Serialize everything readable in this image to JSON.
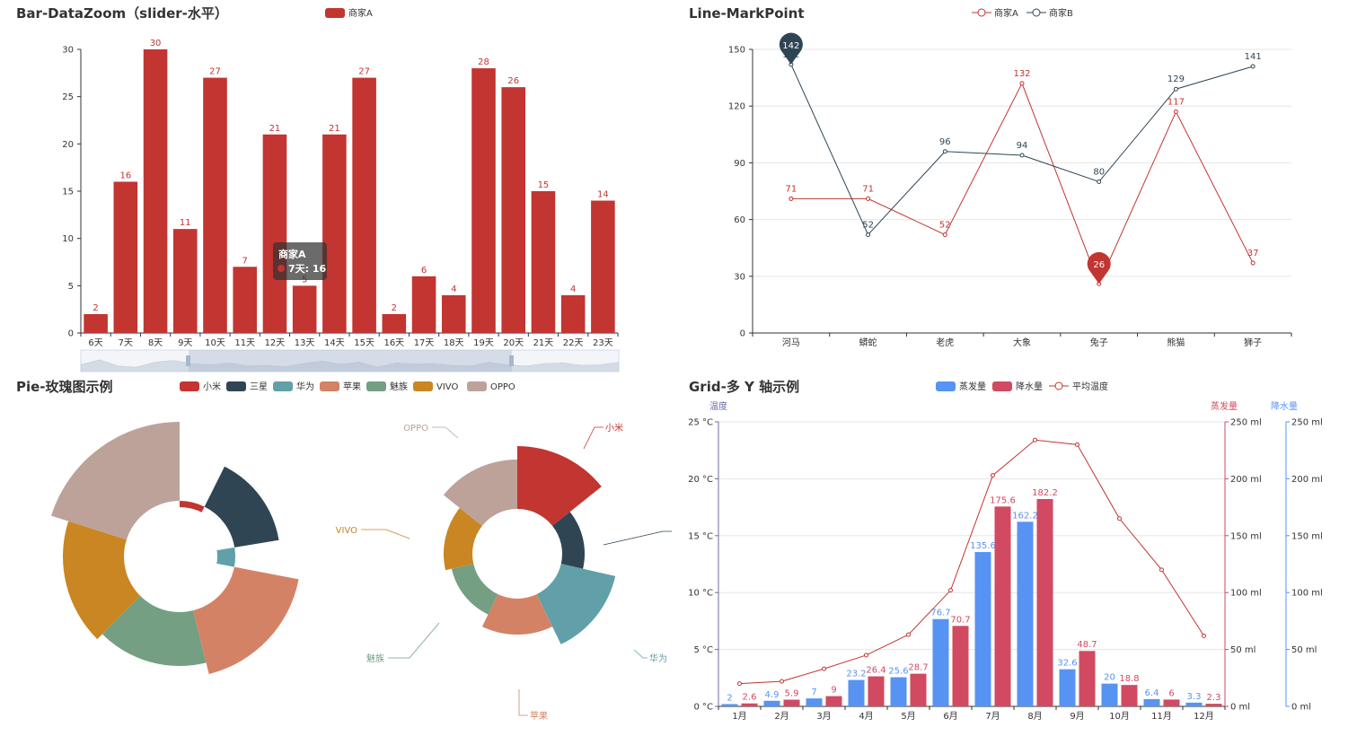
{
  "chart_data": [
    {
      "type": "bar",
      "title": "Bar-DataZoom（slider-水平）",
      "legend": [
        "商家A"
      ],
      "color": "#c23531",
      "categories": [
        "6天",
        "7天",
        "8天",
        "9天",
        "10天",
        "11天",
        "12天",
        "13天",
        "14天",
        "15天",
        "16天",
        "17天",
        "18天",
        "19天",
        "20天",
        "21天",
        "22天",
        "23天"
      ],
      "values": [
        2,
        16,
        30,
        11,
        27,
        7,
        21,
        5,
        21,
        27,
        2,
        6,
        4,
        28,
        26,
        15,
        4,
        14
      ],
      "ylim": [
        0,
        30
      ],
      "yticks": [
        "0",
        "5",
        "10",
        "15",
        "20",
        "25",
        "30"
      ],
      "tooltip": {
        "series": "商家A",
        "text": "7天: 16"
      }
    },
    {
      "type": "line",
      "title": "Line-MarkPoint",
      "categories": [
        "河马",
        "蟒蛇",
        "老虎",
        "大象",
        "兔子",
        "熊猫",
        "狮子"
      ],
      "ylim": [
        0,
        150
      ],
      "yticks": [
        "0",
        "30",
        "60",
        "90",
        "120",
        "150"
      ],
      "series": [
        {
          "name": "商家A",
          "color": "#c23531",
          "values": [
            71,
            71,
            52,
            132,
            26,
            117,
            37
          ],
          "markpoint": "26"
        },
        {
          "name": "商家B",
          "color": "#2f4554",
          "values": [
            142,
            52,
            96,
            94,
            80,
            129,
            141
          ],
          "markpoint": "142"
        }
      ]
    },
    {
      "type": "pie",
      "title": "Pie-玫瑰图示例",
      "names": [
        "小米",
        "三星",
        "华为",
        "苹果",
        "魅族",
        "VIVO",
        "OPPO"
      ],
      "colors": [
        "#c23531",
        "#2f4554",
        "#61a0a8",
        "#d48265",
        "#749f83",
        "#ca8622",
        "#bda29a"
      ],
      "rose1_values": [
        55,
        112,
        42,
        135,
        122,
        130,
        150
      ],
      "rose2_values": [
        120,
        75,
        112,
        90,
        75,
        82,
        105
      ],
      "rose2_labels": [
        "小米",
        "华为",
        "苹果",
        "魅族",
        "VIVO",
        "OPPO"
      ]
    },
    {
      "type": "bar",
      "title": "Grid-多 Y 轴示例",
      "categories": [
        "1月",
        "2月",
        "3月",
        "4月",
        "5月",
        "6月",
        "7月",
        "8月",
        "9月",
        "10月",
        "11月",
        "12月"
      ],
      "legend": [
        "蒸发量",
        "降水量",
        "平均温度"
      ],
      "axis_titles": {
        "temp": "温度",
        "evap": "蒸发量",
        "rain": "降水量"
      },
      "temp_ticks": [
        "0 °C",
        "5 °C",
        "10 °C",
        "15 °C",
        "20 °C",
        "25 °C"
      ],
      "ml_ticks": [
        "0 ml",
        "50 ml",
        "100 ml",
        "150 ml",
        "200 ml",
        "250 ml"
      ],
      "ylim_ml": [
        0,
        250
      ],
      "ylim_temp": [
        0,
        25
      ],
      "series": [
        {
          "name": "蒸发量",
          "color": "#5793f3",
          "values": [
            2,
            4.9,
            7,
            23.2,
            25.6,
            76.7,
            135.6,
            162.2,
            32.6,
            20,
            6.4,
            3.3
          ]
        },
        {
          "name": "降水量",
          "color": "#d14a61",
          "values": [
            2.6,
            5.9,
            9,
            26.4,
            28.7,
            70.7,
            175.6,
            182.2,
            48.7,
            18.8,
            6,
            2.3
          ]
        },
        {
          "name": "平均温度",
          "color": "#c23531",
          "values": [
            2,
            2.2,
            3.3,
            4.5,
            6.3,
            10.2,
            20.3,
            23.4,
            23,
            16.5,
            12,
            6.2
          ]
        }
      ]
    }
  ]
}
